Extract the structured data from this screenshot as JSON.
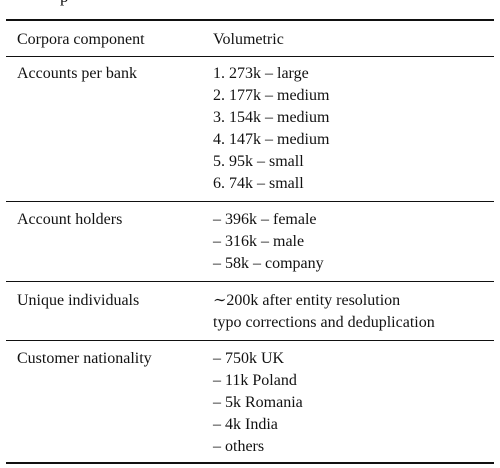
{
  "caption_fragment": "p",
  "table": {
    "headers": [
      "Corpora component",
      "Volumetric"
    ],
    "rows": [
      {
        "component": "Accounts per bank",
        "values": [
          "1. 273k – large",
          "2. 177k – medium",
          "3. 154k – medium",
          "4. 147k – medium",
          "5. 95k – small",
          "6. 74k – small"
        ]
      },
      {
        "component": "Account holders",
        "values": [
          "– 396k – female",
          "– 316k – male",
          "– 58k – company"
        ]
      },
      {
        "component": "Unique individuals",
        "values": [
          "∼200k after entity resolution",
          "typo corrections and deduplication"
        ]
      },
      {
        "component": "Customer nationality",
        "values": [
          "– 750k UK",
          "– 11k Poland",
          "– 5k Romania",
          "– 4k India",
          "– others"
        ]
      }
    ]
  }
}
